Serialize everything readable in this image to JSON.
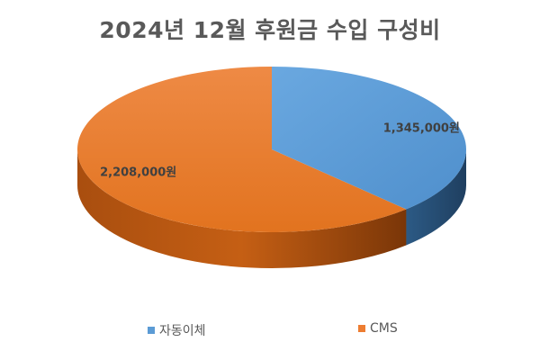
{
  "chart_data": {
    "type": "pie",
    "title": "2024년 12월 후원금 수입 구성비",
    "categories": [
      "자동이체",
      "CMS"
    ],
    "values": [
      1345000,
      2208000
    ],
    "data_labels": [
      "1,345,000원",
      "2,208,000원"
    ],
    "colors": [
      "#5B9BD5",
      "#ED7D31"
    ],
    "legend_position": "bottom",
    "style": "3d"
  }
}
